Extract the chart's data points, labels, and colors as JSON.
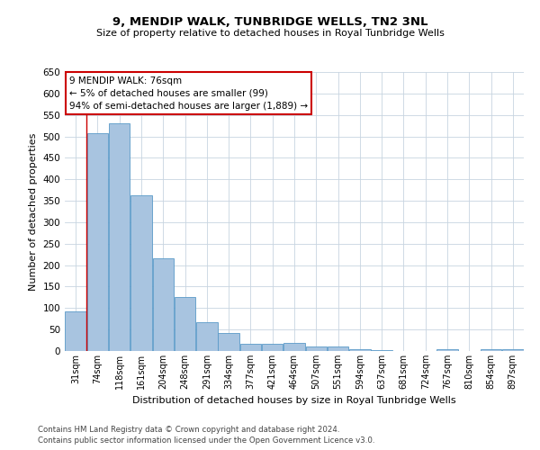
{
  "title": "9, MENDIP WALK, TUNBRIDGE WELLS, TN2 3NL",
  "subtitle": "Size of property relative to detached houses in Royal Tunbridge Wells",
  "xlabel": "Distribution of detached houses by size in Royal Tunbridge Wells",
  "ylabel": "Number of detached properties",
  "footnote1": "Contains HM Land Registry data © Crown copyright and database right 2024.",
  "footnote2": "Contains public sector information licensed under the Open Government Licence v3.0.",
  "categories": [
    "31sqm",
    "74sqm",
    "118sqm",
    "161sqm",
    "204sqm",
    "248sqm",
    "291sqm",
    "334sqm",
    "377sqm",
    "421sqm",
    "464sqm",
    "507sqm",
    "551sqm",
    "594sqm",
    "637sqm",
    "681sqm",
    "724sqm",
    "767sqm",
    "810sqm",
    "854sqm",
    "897sqm"
  ],
  "values": [
    93,
    507,
    530,
    363,
    215,
    125,
    68,
    42,
    16,
    17,
    18,
    10,
    10,
    5,
    2,
    1,
    0,
    5,
    0,
    5,
    5
  ],
  "bar_color": "#a8c4e0",
  "bar_edge_color": "#5a9ac8",
  "background_color": "#ffffff",
  "grid_color": "#c8d4e0",
  "annotation_text": "9 MENDIP WALK: 76sqm\n← 5% of detached houses are smaller (99)\n94% of semi-detached houses are larger (1,889) →",
  "annotation_box_color": "#ffffff",
  "annotation_box_edge_color": "#cc0000",
  "red_line_color": "#cc0000",
  "red_line_bin": 1,
  "ylim": [
    0,
    650
  ],
  "yticks": [
    0,
    50,
    100,
    150,
    200,
    250,
    300,
    350,
    400,
    450,
    500,
    550,
    600,
    650
  ]
}
